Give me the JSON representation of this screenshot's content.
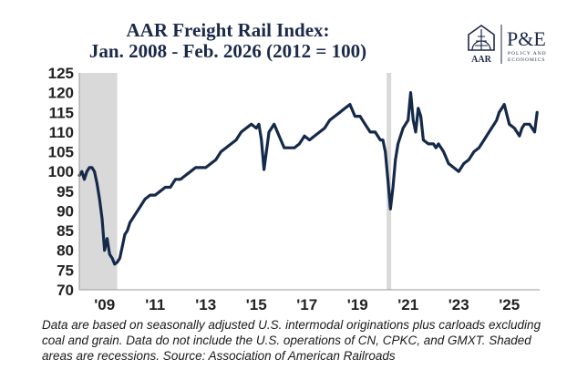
{
  "title": {
    "line1": "AAR Freight Rail Index:",
    "line2": "Jan. 2008 - Feb. 2026 (2012 = 100)"
  },
  "logo": {
    "aar_text": "AAR",
    "pe_text": "P&E",
    "pe_sub1": "POLICY AND",
    "pe_sub2": "ECONOMICS"
  },
  "footnote": "Data are based on seasonally adjusted U.S. intermodal originations plus carloads excluding coal and grain. Data do not include the U.S. operations of CN, CPKC, and GMXT. Shaded areas are recessions. Source: Association of American Railroads",
  "colors": {
    "line": "#15294a",
    "recession": "#d9d9d9",
    "title": "#1b2a4a"
  },
  "chart_data": {
    "type": "line",
    "title": "AAR Freight Rail Index: Jan. 2008 - Feb. 2026 (2012 = 100)",
    "xlabel": "",
    "ylabel": "",
    "xlim": [
      2008.0,
      2026.2
    ],
    "ylim": [
      70,
      125
    ],
    "yticks": [
      70,
      75,
      80,
      85,
      90,
      95,
      100,
      105,
      110,
      115,
      120,
      125
    ],
    "ytick_labels": [
      "70",
      "75",
      "80",
      "85",
      "90",
      "95",
      "100",
      "105",
      "110",
      "115",
      "120",
      "125"
    ],
    "xticks": [
      2009,
      2011,
      2013,
      2015,
      2017,
      2019,
      2021,
      2023,
      2025
    ],
    "xtick_labels": [
      "'09",
      "'11",
      "'13",
      "'15",
      "'17",
      "'19",
      "'21",
      "'23",
      "'25"
    ],
    "recessions": [
      [
        2008.0,
        2009.5
      ],
      [
        2020.15,
        2020.33
      ]
    ],
    "series": [
      {
        "name": "AAR Freight Rail Index",
        "x": [
          2008.0,
          2008.1,
          2008.2,
          2008.3,
          2008.4,
          2008.5,
          2008.6,
          2008.7,
          2008.8,
          2008.9,
          2009.0,
          2009.1,
          2009.2,
          2009.3,
          2009.4,
          2009.5,
          2009.6,
          2009.7,
          2009.8,
          2009.9,
          2010.0,
          2010.2,
          2010.4,
          2010.6,
          2010.8,
          2011.0,
          2011.2,
          2011.4,
          2011.6,
          2011.8,
          2012.0,
          2012.2,
          2012.4,
          2012.6,
          2012.8,
          2013.0,
          2013.2,
          2013.4,
          2013.6,
          2013.8,
          2014.0,
          2014.2,
          2014.4,
          2014.6,
          2014.8,
          2015.0,
          2015.1,
          2015.2,
          2015.3,
          2015.5,
          2015.7,
          2015.9,
          2016.1,
          2016.3,
          2016.5,
          2016.7,
          2016.9,
          2017.1,
          2017.3,
          2017.5,
          2017.7,
          2017.9,
          2018.1,
          2018.3,
          2018.5,
          2018.7,
          2018.9,
          2019.1,
          2019.3,
          2019.5,
          2019.7,
          2019.9,
          2020.0,
          2020.1,
          2020.2,
          2020.3,
          2020.4,
          2020.5,
          2020.6,
          2020.7,
          2020.8,
          2020.9,
          2021.0,
          2021.1,
          2021.2,
          2021.3,
          2021.4,
          2021.5,
          2021.6,
          2021.8,
          2022.0,
          2022.1,
          2022.2,
          2022.4,
          2022.6,
          2022.8,
          2023.0,
          2023.2,
          2023.4,
          2023.6,
          2023.8,
          2024.0,
          2024.2,
          2024.4,
          2024.5,
          2024.6,
          2024.8,
          2025.0,
          2025.2,
          2025.4,
          2025.5,
          2025.6,
          2025.8,
          2026.0,
          2026.1
        ],
        "values": [
          99,
          100,
          98,
          100,
          101,
          101,
          100,
          97,
          93,
          88,
          80,
          83,
          79,
          78,
          76.5,
          77,
          78,
          81,
          84,
          85,
          87,
          89,
          91,
          93,
          94,
          94,
          95,
          96,
          96,
          98,
          98,
          99,
          100,
          101,
          101,
          101,
          102,
          103,
          105,
          106,
          107,
          108,
          110,
          111,
          112,
          111,
          112,
          108,
          100.5,
          110,
          112,
          109,
          106,
          106,
          106,
          107,
          109,
          108,
          109,
          110,
          111,
          113,
          114,
          115,
          116,
          117,
          114,
          114,
          112,
          110,
          110,
          108,
          108,
          105,
          98,
          90.5,
          96,
          103,
          107,
          109,
          111,
          112,
          113,
          120,
          113,
          110,
          116,
          114,
          108,
          107,
          107,
          106,
          107,
          105,
          102,
          101,
          100,
          102,
          103,
          105,
          106,
          108,
          110,
          112,
          113,
          115,
          117,
          112,
          111,
          109,
          111,
          112,
          112,
          110,
          115
        ]
      }
    ]
  }
}
